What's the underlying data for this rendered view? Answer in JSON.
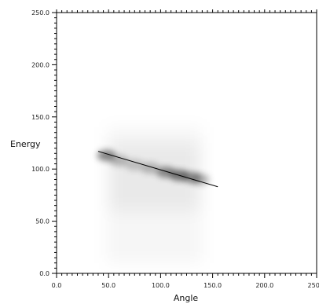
{
  "chart_data": {
    "type": "heatmap",
    "title": "",
    "xlabel": "Angle",
    "ylabel": "Energy",
    "xlim": [
      0,
      250
    ],
    "ylim": [
      0,
      250
    ],
    "x_ticks": [
      "0.0",
      "50.0",
      "100.0",
      "150.0",
      "200.0",
      "250.0"
    ],
    "y_ticks": [
      "0.0",
      "50.0",
      "100.0",
      "150.0",
      "200.0",
      "250.0"
    ],
    "grid": false,
    "density": {
      "x_range": [
        48,
        140
      ],
      "y_range": [
        10,
        140
      ],
      "ridge": [
        {
          "x": 48,
          "y": 113,
          "intensity": 0.85
        },
        {
          "x": 60,
          "y": 108,
          "intensity": 0.45
        },
        {
          "x": 75,
          "y": 104,
          "intensity": 0.35
        },
        {
          "x": 90,
          "y": 101,
          "intensity": 0.45
        },
        {
          "x": 105,
          "y": 97,
          "intensity": 0.8
        },
        {
          "x": 118,
          "y": 94,
          "intensity": 0.95
        },
        {
          "x": 130,
          "y": 92,
          "intensity": 0.7
        },
        {
          "x": 138,
          "y": 90,
          "intensity": 0.5
        }
      ]
    },
    "fit_line": {
      "x": [
        40,
        155
      ],
      "y": [
        117,
        83
      ]
    },
    "colors": {
      "marks": "#000000",
      "axis": "#000000",
      "background": "#ffffff"
    }
  }
}
